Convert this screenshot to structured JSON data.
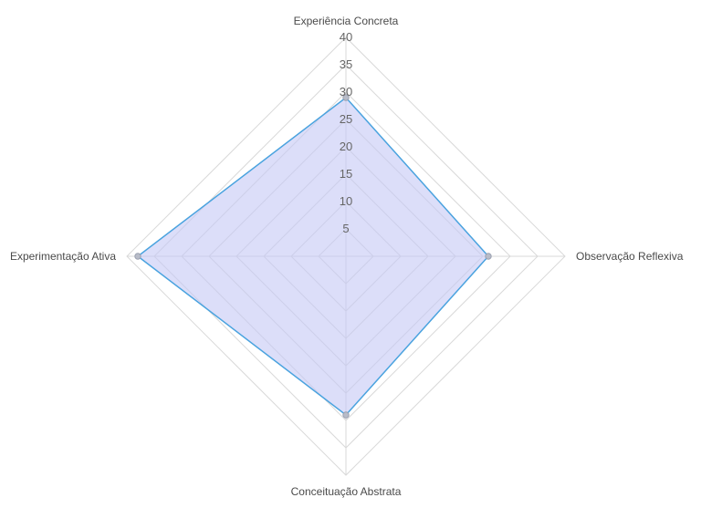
{
  "chart_data": {
    "type": "radar",
    "axes": [
      "Experiência Concreta",
      "Observação Reflexiva",
      "Conceituação Abstrata",
      "Experimentação Ativa"
    ],
    "ticks": [
      5,
      10,
      15,
      20,
      25,
      30,
      35,
      40
    ],
    "r_range": [
      0,
      40
    ],
    "series": [
      {
        "values": [
          29,
          26,
          29,
          38
        ]
      }
    ],
    "colors": {
      "line": "#4aa3df",
      "fill": "#c5c8f5",
      "grid": "#d9d9d9"
    },
    "grid": true,
    "legend": "none"
  }
}
